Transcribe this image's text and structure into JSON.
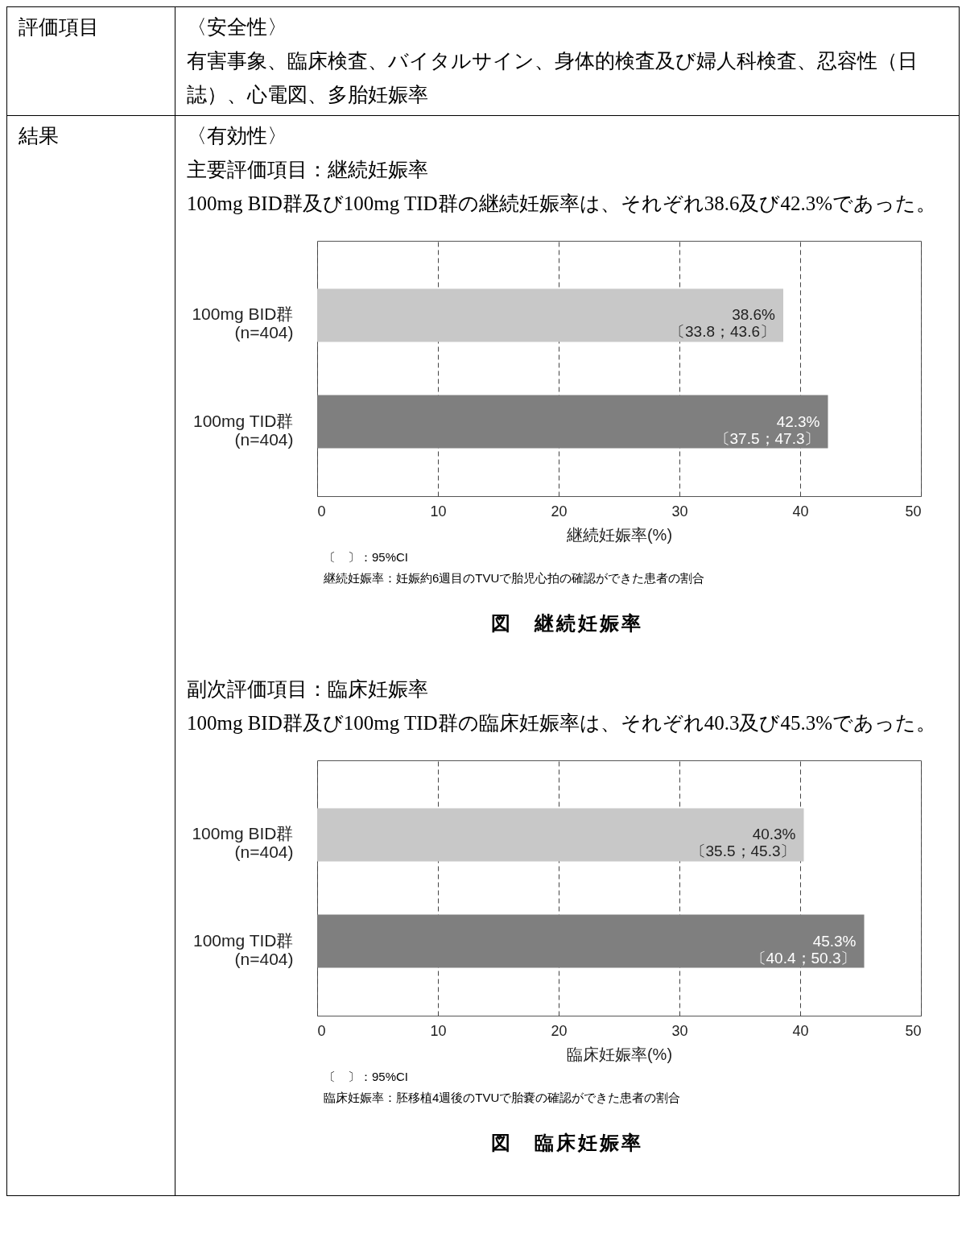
{
  "chart_data": [
    {
      "type": "bar",
      "orientation": "horizontal",
      "title": "図　継続妊娠率",
      "xlabel": "継続妊娠率(%)",
      "categories": [
        "100mg BID群\n(n=404)",
        "100mg TID群\n(n=404)"
      ],
      "values": [
        38.6,
        42.3
      ],
      "colors": [
        "#c8c8c8",
        "#7f7f7f"
      ],
      "value_labels": [
        "38.6%\n〔33.8；43.6〕",
        "42.3%\n〔37.5；47.3〕"
      ],
      "xlim": [
        0,
        50
      ],
      "xticks": [
        0,
        10,
        20,
        30,
        40,
        50
      ],
      "grid": "x",
      "annotations": [
        "評価項目",
        "〈安全性〉",
        "有害事象、臨床検査、バイタルサイン、身体的検査及び婦人科検査、忍容性（日誌）、心電図、多胎妊娠率",
        "結果",
        "〈有効性〉",
        "主要評価項目：継続妊娠率",
        "100mg BID群及び100mg TID群の継続妊娠率は、それぞれ38.6及び42.3%であった。",
        "〔　〕：95%CI",
        "継続妊娠率：妊娠約6週目のTVUで胎児心拍の確認ができた患者の割合"
      ]
    },
    {
      "type": "bar",
      "orientation": "horizontal",
      "title": "図　臨床妊娠率",
      "xlabel": "臨床妊娠率(%)",
      "categories": [
        "100mg BID群\n(n=404)",
        "100mg TID群\n(n=404)"
      ],
      "values": [
        40.3,
        45.3
      ],
      "colors": [
        "#c8c8c8",
        "#7f7f7f"
      ],
      "value_labels": [
        "40.3%\n〔35.5；45.3〕",
        "45.3%\n〔40.4；50.3〕"
      ],
      "xlim": [
        0,
        50
      ],
      "xticks": [
        0,
        10,
        20,
        30,
        40,
        50
      ],
      "grid": "x",
      "annotations": [
        "副次評価項目：臨床妊娠率",
        "100mg BID群及び100mg TID群の臨床妊娠率は、それぞれ40.3及び45.3%であった。",
        "〔　〕：95%CI",
        "臨床妊娠率：胚移植4週後のTVUで胎嚢の確認ができた患者の割合"
      ]
    }
  ]
}
